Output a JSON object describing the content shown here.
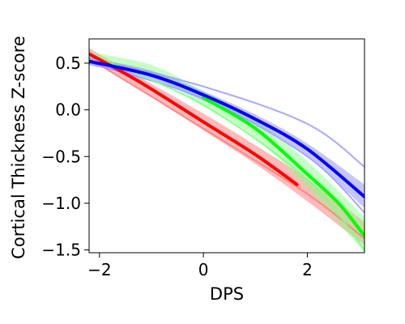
{
  "chart_data": {
    "type": "line",
    "title": "",
    "xlabel": "DPS",
    "ylabel": "Cortical Thickness Z-score",
    "xlim": [
      -2.2,
      3.1
    ],
    "ylim": [
      -1.53,
      0.76
    ],
    "x_ticks": [
      -2,
      0,
      2
    ],
    "x_tick_labels": [
      "−2",
      "0",
      "2"
    ],
    "y_ticks": [
      0.5,
      0.0,
      -0.5,
      -1.0,
      -1.5
    ],
    "y_tick_labels": [
      "0.5",
      "0.0",
      "−0.5",
      "−1.0",
      "−1.5"
    ],
    "grid": false,
    "legend": false,
    "series": [
      {
        "color": "#ff0000",
        "band_color": "#ff6666",
        "points": [
          {
            "x": -2.2,
            "y": 0.6
          },
          {
            "x": -1.2,
            "y": 0.29
          },
          {
            "x": 0.0,
            "y": -0.13
          },
          {
            "x": 1.0,
            "y": -0.48
          },
          {
            "x": 1.8,
            "y": -0.8
          }
        ],
        "ci_upper": [
          {
            "x": -2.2,
            "y": 0.66
          },
          {
            "x": -1.2,
            "y": 0.34
          },
          {
            "x": 0.0,
            "y": -0.04
          },
          {
            "x": 1.0,
            "y": -0.38
          },
          {
            "x": 2.0,
            "y": -0.74
          },
          {
            "x": 3.1,
            "y": -1.2
          }
        ],
        "ci_lower": [
          {
            "x": -2.2,
            "y": 0.56
          },
          {
            "x": -1.2,
            "y": 0.21
          },
          {
            "x": 0.0,
            "y": -0.22
          },
          {
            "x": 1.0,
            "y": -0.58
          },
          {
            "x": 2.0,
            "y": -0.98
          },
          {
            "x": 3.1,
            "y": -1.45
          }
        ]
      },
      {
        "color": "#00ff00",
        "band_color": "#80ff80",
        "points": [
          {
            "x": 0.0,
            "y": 0.13
          },
          {
            "x": 1.0,
            "y": -0.2
          },
          {
            "x": 2.0,
            "y": -0.69
          },
          {
            "x": 2.6,
            "y": -1.0
          },
          {
            "x": 3.1,
            "y": -1.35
          }
        ],
        "ci_upper": [
          {
            "x": -2.2,
            "y": 0.62
          },
          {
            "x": -1.0,
            "y": 0.48
          },
          {
            "x": 0.0,
            "y": 0.2
          },
          {
            "x": 1.0,
            "y": -0.1
          },
          {
            "x": 2.0,
            "y": -0.55
          },
          {
            "x": 3.1,
            "y": -1.15
          }
        ],
        "ci_lower": [
          {
            "x": -2.2,
            "y": 0.48
          },
          {
            "x": -1.0,
            "y": 0.35
          },
          {
            "x": 0.0,
            "y": 0.05
          },
          {
            "x": 1.0,
            "y": -0.3
          },
          {
            "x": 2.0,
            "y": -0.84
          },
          {
            "x": 3.1,
            "y": -1.53
          }
        ]
      },
      {
        "color": "#0000ff",
        "band_color": "#8080ff",
        "points": [
          {
            "x": -2.2,
            "y": 0.52
          },
          {
            "x": -1.0,
            "y": 0.37
          },
          {
            "x": 0.0,
            "y": 0.16
          },
          {
            "x": 1.0,
            "y": -0.1
          },
          {
            "x": 2.0,
            "y": -0.42
          },
          {
            "x": 3.1,
            "y": -0.93
          }
        ],
        "ci_upper": [
          {
            "x": -2.2,
            "y": 0.56
          },
          {
            "x": -1.0,
            "y": 0.42
          },
          {
            "x": 0.0,
            "y": 0.2
          },
          {
            "x": 1.0,
            "y": -0.05
          },
          {
            "x": 2.0,
            "y": -0.36
          },
          {
            "x": 3.1,
            "y": -0.8
          }
        ],
        "ci_lower": [
          {
            "x": -2.2,
            "y": 0.48
          },
          {
            "x": -1.0,
            "y": 0.32
          },
          {
            "x": 0.0,
            "y": 0.1
          },
          {
            "x": 1.0,
            "y": -0.16
          },
          {
            "x": 2.0,
            "y": -0.5
          },
          {
            "x": 3.1,
            "y": -1.05
          }
        ]
      }
    ],
    "extra_curves": [
      {
        "color": "#a0a0ff",
        "points": [
          {
            "x": -2.2,
            "y": 0.56
          },
          {
            "x": 0.0,
            "y": 0.25
          },
          {
            "x": 2.0,
            "y": -0.15
          },
          {
            "x": 3.1,
            "y": -0.61
          }
        ]
      },
      {
        "color": "#a0a0ff",
        "points": [
          {
            "x": -2.2,
            "y": 0.5
          },
          {
            "x": 0.0,
            "y": 0.12
          },
          {
            "x": 2.0,
            "y": -0.5
          },
          {
            "x": 3.1,
            "y": -1.1
          }
        ]
      },
      {
        "color": "#ff8080",
        "points": [
          {
            "x": -2.2,
            "y": 0.55
          },
          {
            "x": 0.0,
            "y": -0.2
          },
          {
            "x": 2.0,
            "y": -0.9
          },
          {
            "x": 3.1,
            "y": -1.38
          }
        ]
      },
      {
        "color": "#80ff80",
        "points": [
          {
            "x": -2.2,
            "y": 0.6
          },
          {
            "x": 0.0,
            "y": 0.05
          },
          {
            "x": 2.0,
            "y": -0.75
          },
          {
            "x": 3.1,
            "y": -1.5
          }
        ]
      }
    ]
  }
}
